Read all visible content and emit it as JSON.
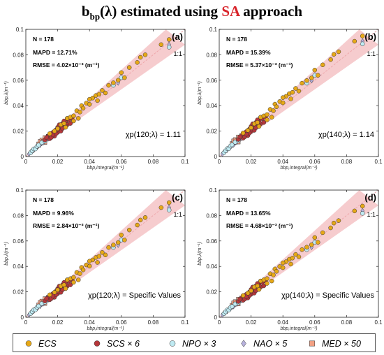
{
  "title": {
    "prefix": "b",
    "sub": "bp",
    "mid": "(λ) estimated using ",
    "highlight": "SA",
    "suffix": " approach"
  },
  "colors": {
    "ECS": "#e6a817",
    "SCS": "#b5373a",
    "NPO": "#bfeaf2",
    "NAO": "#b8b2de",
    "MED": "#f2a184",
    "band": "#f4c3c6",
    "highlight": "#d8232a"
  },
  "legend": [
    {
      "key": "ECS",
      "label": "ECS",
      "marker": "circle"
    },
    {
      "key": "SCS",
      "label": "SCS × 6",
      "marker": "circle"
    },
    {
      "key": "NPO",
      "label": "NPO × 3",
      "marker": "circle"
    },
    {
      "key": "NAO",
      "label": "NAO × 5",
      "marker": "diamond"
    },
    {
      "key": "MED",
      "label": "MED × 50",
      "marker": "square"
    }
  ],
  "chart_data": [
    {
      "type": "scatter",
      "panel": "(a)",
      "stats": {
        "n": "N = 178",
        "mapd": "MAPD = 12.71%",
        "rmse": "RMSE = 4.02×10⁻³ (m⁻¹)"
      },
      "chi": "χp(120;λ) = 1.11",
      "xlabel": "b_bp,integral(m⁻¹)",
      "ylabel": "b_bp,λ(m⁻¹)",
      "xlim": [
        0,
        0.1
      ],
      "ylim": [
        0,
        0.1
      ],
      "xticks": [
        "0",
        "0.02",
        "0.04",
        "0.06",
        "0.08",
        "0.1"
      ],
      "yticks": [
        "0",
        "0.02",
        "0.04",
        "0.06",
        "0.08",
        "0.1"
      ],
      "one_to_one": "1:1",
      "scale": 1.0
    },
    {
      "type": "scatter",
      "panel": "(b)",
      "stats": {
        "n": "N = 178",
        "mapd": "MAPD = 15.39%",
        "rmse": "RMSE = 5.37×10⁻³ (m⁻¹)"
      },
      "chi": "χp(140;λ) = 1.14",
      "xlabel": "b_bp,integral(m⁻¹)",
      "ylabel": "b_bp,λ(m⁻¹)",
      "xlim": [
        0,
        0.1
      ],
      "ylim": [
        0,
        0.1
      ],
      "xticks": [
        "0",
        "0.02",
        "0.04",
        "0.06",
        "0.08",
        "0.1"
      ],
      "yticks": [
        "0",
        "0.02",
        "0.04",
        "0.06",
        "0.08",
        "0.1"
      ],
      "one_to_one": "1:1",
      "scale": 1.03
    },
    {
      "type": "scatter",
      "panel": "(c)",
      "stats": {
        "n": "N = 178",
        "mapd": "MAPD = 9.96%",
        "rmse": "RMSE = 2.84×10⁻³ (m⁻¹)"
      },
      "chi": "χp(120;λ) = Specific Values",
      "xlabel": "b_bp,integral(m⁻¹)",
      "ylabel": "b_bp,λ(m⁻¹)",
      "xlim": [
        0,
        0.1
      ],
      "ylim": [
        0,
        0.1
      ],
      "xticks": [
        "0",
        "0.02",
        "0.04",
        "0.06",
        "0.08",
        "0.1"
      ],
      "yticks": [
        "0",
        "0.02",
        "0.04",
        "0.06",
        "0.08",
        "0.1"
      ],
      "one_to_one": "1:1",
      "scale": 0.98
    },
    {
      "type": "scatter",
      "panel": "(d)",
      "stats": {
        "n": "N = 178",
        "mapd": "MAPD = 13.65%",
        "rmse": "RMSE = 4.68×10⁻³ (m⁻¹)"
      },
      "chi": "χp(140;λ) = Specific Values",
      "xlabel": "b_bp,integral(m⁻¹)",
      "ylabel": "b_bp,λ(m⁻¹)",
      "xlim": [
        0,
        0.1
      ],
      "ylim": [
        0,
        0.1
      ],
      "xticks": [
        "0",
        "0.02",
        "0.04",
        "0.06",
        "0.08",
        "0.1"
      ],
      "yticks": [
        "0",
        "0.02",
        "0.04",
        "0.06",
        "0.08",
        "0.1"
      ],
      "one_to_one": "1:1",
      "scale": 0.95
    }
  ],
  "points": {
    "ECS": [
      [
        0.015,
        0.018
      ],
      [
        0.018,
        0.02
      ],
      [
        0.02,
        0.022
      ],
      [
        0.022,
        0.025
      ],
      [
        0.024,
        0.026
      ],
      [
        0.026,
        0.03
      ],
      [
        0.028,
        0.031
      ],
      [
        0.03,
        0.032
      ],
      [
        0.032,
        0.036
      ],
      [
        0.034,
        0.035
      ],
      [
        0.035,
        0.04
      ],
      [
        0.036,
        0.038
      ],
      [
        0.038,
        0.042
      ],
      [
        0.04,
        0.041
      ],
      [
        0.042,
        0.046
      ],
      [
        0.044,
        0.048
      ],
      [
        0.046,
        0.049
      ],
      [
        0.048,
        0.052
      ],
      [
        0.05,
        0.05
      ],
      [
        0.052,
        0.056
      ],
      [
        0.055,
        0.058
      ],
      [
        0.058,
        0.06
      ],
      [
        0.06,
        0.066
      ],
      [
        0.062,
        0.062
      ],
      [
        0.065,
        0.07
      ],
      [
        0.07,
        0.074
      ],
      [
        0.072,
        0.078
      ],
      [
        0.075,
        0.08
      ],
      [
        0.085,
        0.088
      ],
      [
        0.09,
        0.092
      ],
      [
        0.025,
        0.023
      ],
      [
        0.03,
        0.028
      ],
      [
        0.045,
        0.044
      ],
      [
        0.04,
        0.045
      ],
      [
        0.033,
        0.03
      ]
    ],
    "SCS": [
      [
        0.012,
        0.013
      ],
      [
        0.014,
        0.016
      ],
      [
        0.015,
        0.014
      ],
      [
        0.016,
        0.018
      ],
      [
        0.017,
        0.019
      ],
      [
        0.018,
        0.016
      ],
      [
        0.019,
        0.021
      ],
      [
        0.02,
        0.019
      ],
      [
        0.02,
        0.023
      ],
      [
        0.021,
        0.022
      ],
      [
        0.022,
        0.02
      ],
      [
        0.022,
        0.024
      ],
      [
        0.023,
        0.026
      ],
      [
        0.024,
        0.023
      ],
      [
        0.025,
        0.027
      ],
      [
        0.026,
        0.025
      ],
      [
        0.027,
        0.029
      ],
      [
        0.028,
        0.026
      ],
      [
        0.018,
        0.02
      ],
      [
        0.016,
        0.015
      ],
      [
        0.019,
        0.018
      ],
      [
        0.021,
        0.025
      ],
      [
        0.024,
        0.028
      ],
      [
        0.026,
        0.03
      ],
      [
        0.02,
        0.021
      ],
      [
        0.023,
        0.022
      ],
      [
        0.013,
        0.015
      ],
      [
        0.017,
        0.017
      ],
      [
        0.029,
        0.03
      ],
      [
        0.025,
        0.024
      ]
    ],
    "NPO": [
      [
        0.003,
        0.003
      ],
      [
        0.004,
        0.0045
      ],
      [
        0.005,
        0.006
      ],
      [
        0.006,
        0.006
      ],
      [
        0.007,
        0.008
      ],
      [
        0.008,
        0.009
      ],
      [
        0.01,
        0.011
      ],
      [
        0.012,
        0.012
      ],
      [
        0.055,
        0.056
      ],
      [
        0.06,
        0.062
      ],
      [
        0.09,
        0.086
      ]
    ],
    "NAO": [
      [
        0.002,
        0.002
      ],
      [
        0.003,
        0.0035
      ],
      [
        0.004,
        0.004
      ],
      [
        0.005,
        0.005
      ],
      [
        0.006,
        0.0065
      ],
      [
        0.007,
        0.007
      ],
      [
        0.008,
        0.0085
      ],
      [
        0.009,
        0.009
      ],
      [
        0.01,
        0.0105
      ],
      [
        0.011,
        0.011
      ],
      [
        0.012,
        0.0125
      ],
      [
        0.014,
        0.014
      ],
      [
        0.016,
        0.016
      ],
      [
        0.018,
        0.018
      ],
      [
        0.058,
        0.058
      ],
      [
        0.09,
        0.088
      ]
    ],
    "MED": [
      [
        0.008,
        0.01
      ],
      [
        0.009,
        0.012
      ],
      [
        0.01,
        0.013
      ],
      [
        0.011,
        0.012
      ],
      [
        0.012,
        0.015
      ],
      [
        0.013,
        0.014
      ],
      [
        0.014,
        0.016
      ],
      [
        0.015,
        0.017
      ],
      [
        0.016,
        0.016
      ],
      [
        0.017,
        0.018
      ],
      [
        0.018,
        0.019
      ],
      [
        0.012,
        0.011
      ]
    ]
  }
}
